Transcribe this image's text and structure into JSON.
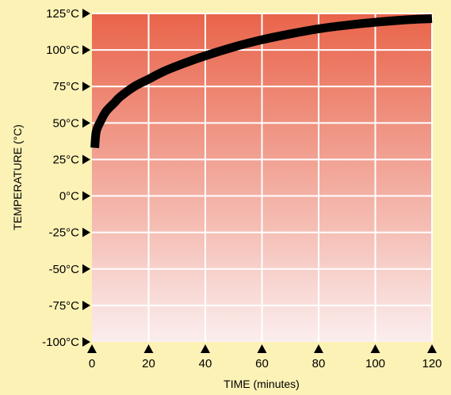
{
  "chart_data": {
    "type": "line",
    "title": "",
    "xlabel": "TIME (minutes)",
    "ylabel": "TEMPERATURE (°C)",
    "x_ticks": [
      0,
      20,
      40,
      60,
      80,
      100,
      120
    ],
    "y_ticks": [
      -100,
      -75,
      -50,
      -25,
      0,
      25,
      50,
      75,
      100,
      125
    ],
    "y_tick_labels": [
      "-100°C",
      "-75°C",
      "-50°C",
      "-25°C",
      "0°C",
      "25°C",
      "50°C",
      "75°C",
      "100°C",
      "125°C"
    ],
    "xlim": [
      0,
      120
    ],
    "ylim": [
      -100,
      125
    ],
    "grid": true,
    "series": [
      {
        "x": [
          1,
          1.5,
          3,
          5,
          8,
          10,
          15,
          20,
          25,
          30,
          40,
          50,
          60,
          70,
          80,
          90,
          100,
          110,
          120
        ],
        "y": [
          33,
          44,
          51,
          58,
          64,
          68,
          75,
          80,
          85,
          89,
          96,
          102,
          107,
          111,
          114.5,
          117,
          119,
          120.5,
          121.5
        ]
      }
    ]
  },
  "colors": {
    "background": "#fdf2b6",
    "plot_top": "#e9644a",
    "plot_bottom": "#fbeeee",
    "grid": "#ffffff",
    "line": "#000000",
    "marker": "#000000"
  }
}
